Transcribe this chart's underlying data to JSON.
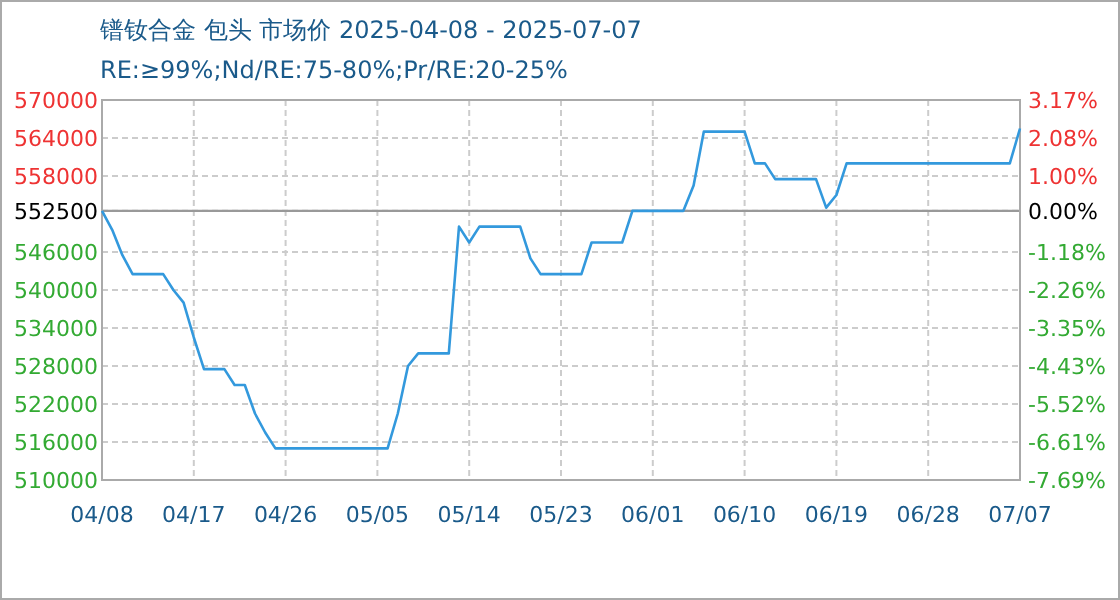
{
  "chart_data": {
    "type": "line",
    "title": "镨钕合金 包头 市场价 2025-04-08 - 2025-07-07",
    "subtitle": "RE:≥99%;Nd/RE:75-80%;Pr/RE:20-25%",
    "x": [
      "2025-04-08",
      "2025-04-09",
      "2025-04-10",
      "2025-04-11",
      "2025-04-14",
      "2025-04-15",
      "2025-04-16",
      "2025-04-17",
      "2025-04-18",
      "2025-04-20",
      "2025-04-21",
      "2025-04-22",
      "2025-04-23",
      "2025-04-24",
      "2025-04-25",
      "2025-05-06",
      "2025-05-07",
      "2025-05-08",
      "2025-05-09",
      "2025-05-12",
      "2025-05-13",
      "2025-05-14",
      "2025-05-15",
      "2025-05-19",
      "2025-05-20",
      "2025-05-21",
      "2025-05-25",
      "2025-05-26",
      "2025-05-29",
      "2025-05-30",
      "2025-06-04",
      "2025-06-05",
      "2025-06-06",
      "2025-06-10",
      "2025-06-11",
      "2025-06-12",
      "2025-06-13",
      "2025-06-17",
      "2025-06-18",
      "2025-06-19",
      "2025-06-20",
      "2025-07-06",
      "2025-07-07"
    ],
    "series": [
      {
        "color": "#3399dd",
        "values": [
          552500,
          549500,
          545500,
          542500,
          542500,
          540000,
          538000,
          532500,
          527500,
          527500,
          525000,
          525000,
          520500,
          517500,
          515000,
          515000,
          520500,
          528000,
          530000,
          530000,
          550000,
          547500,
          550000,
          550000,
          545000,
          542500,
          542500,
          547500,
          547500,
          552500,
          552500,
          556500,
          565000,
          565000,
          560000,
          560000,
          557500,
          557500,
          553000,
          555000,
          560000,
          560000,
          565500
        ]
      }
    ],
    "xlim": [
      "2025-04-08",
      "2025-07-07"
    ],
    "xticks": [
      {
        "value": "2025-04-08",
        "label": "04/08"
      },
      {
        "value": "2025-04-17",
        "label": "04/17"
      },
      {
        "value": "2025-04-26",
        "label": "04/26"
      },
      {
        "value": "2025-05-05",
        "label": "05/05"
      },
      {
        "value": "2025-05-14",
        "label": "05/14"
      },
      {
        "value": "2025-05-23",
        "label": "05/23"
      },
      {
        "value": "2025-06-01",
        "label": "06/01"
      },
      {
        "value": "2025-06-10",
        "label": "06/10"
      },
      {
        "value": "2025-06-19",
        "label": "06/19"
      },
      {
        "value": "2025-06-28",
        "label": "06/28"
      },
      {
        "value": "2025-07-07",
        "label": "07/07"
      }
    ],
    "ylim": [
      510000,
      570000
    ],
    "yticks": [
      510000,
      516000,
      522000,
      528000,
      534000,
      540000,
      546000,
      552500,
      558000,
      564000,
      570000
    ],
    "y2lim": [
      -7.69,
      3.17
    ],
    "y2ticks": [
      {
        "value": -7.69,
        "label": "-7.69%"
      },
      {
        "value": -6.61,
        "label": "-6.61%"
      },
      {
        "value": -5.52,
        "label": "-5.52%"
      },
      {
        "value": -4.43,
        "label": "-4.43%"
      },
      {
        "value": -3.35,
        "label": "-3.35%"
      },
      {
        "value": -2.26,
        "label": "-2.26%"
      },
      {
        "value": -1.18,
        "label": "-1.18%"
      },
      {
        "value": 0,
        "label": "0.00%"
      },
      {
        "value": 1.0,
        "label": "1.00%"
      },
      {
        "value": 2.08,
        "label": "2.08%"
      },
      {
        "value": 3.17,
        "label": "3.17%"
      }
    ],
    "ref_lines": [
      {
        "axis": "y",
        "value": 552500,
        "color": "#999999"
      }
    ],
    "grid": true
  }
}
